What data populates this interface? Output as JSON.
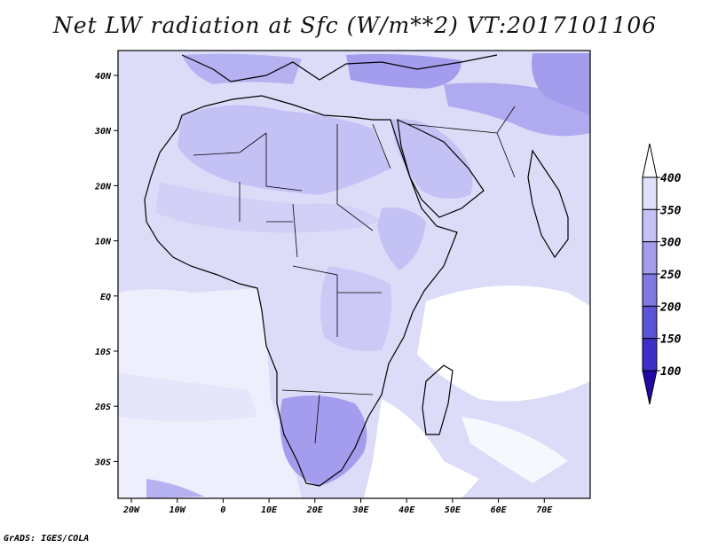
{
  "title": "Net LW radiation at Sfc (W/m**2) VT:2017101106",
  "credit": "GrADS: IGES/COLA",
  "map": {
    "lon_labels": [
      "20W",
      "10W",
      "0",
      "10E",
      "20E",
      "30E",
      "40E",
      "50E",
      "60E",
      "70E"
    ],
    "lat_labels": [
      "40N",
      "30N",
      "20N",
      "10N",
      "EQ",
      "10S",
      "20S",
      "30S"
    ],
    "colorbar": {
      "labels": [
        "400",
        "350",
        "300",
        "250",
        "200",
        "150",
        "100"
      ],
      "colors": [
        "#ffffff",
        "#e0e0fb",
        "#c4c1f5",
        "#a49ded",
        "#8079e2",
        "#5c54d6",
        "#3c2fc8",
        "#2208a8"
      ]
    }
  }
}
